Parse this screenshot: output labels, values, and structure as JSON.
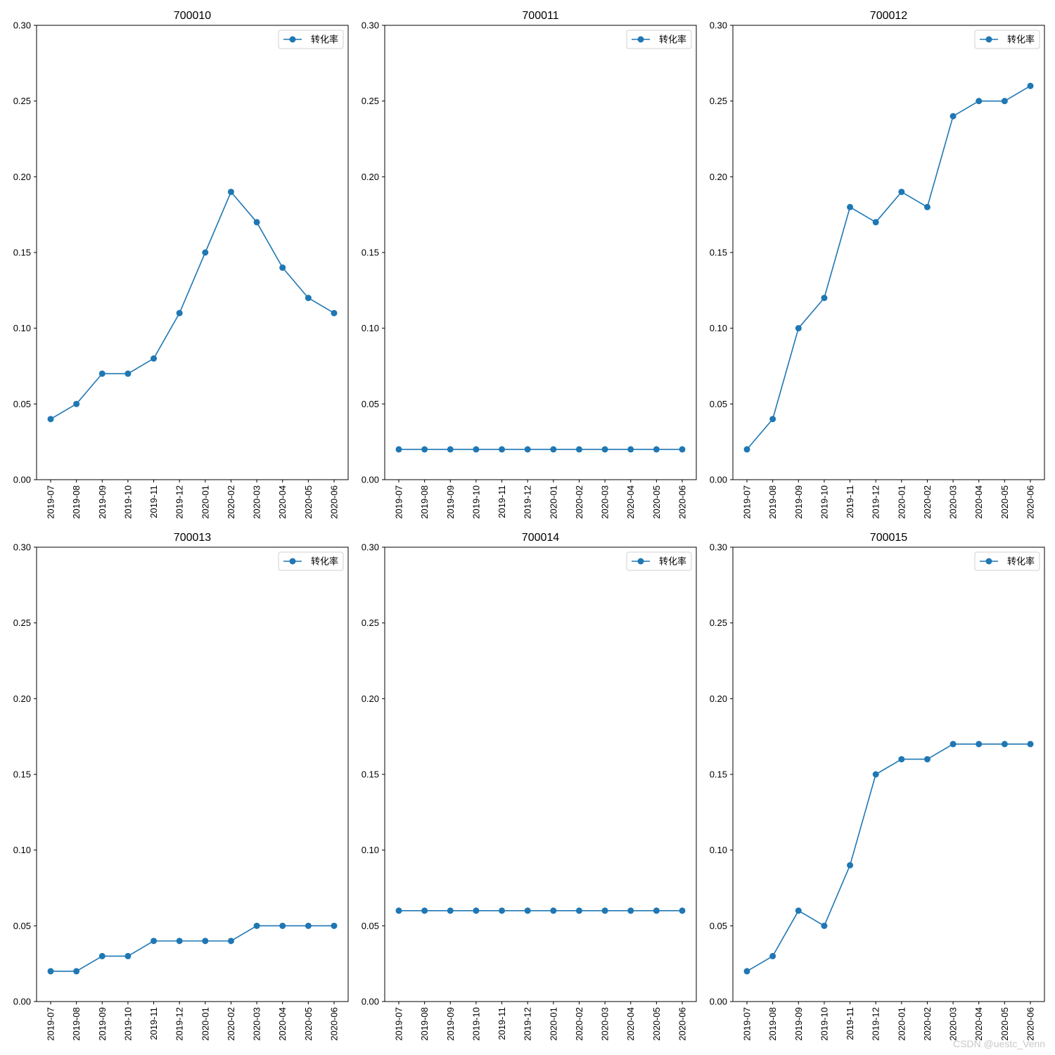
{
  "watermark": "CSDN @uestc_Venn",
  "chart_data": [
    {
      "type": "line",
      "title": "700010",
      "x": [
        "2019-07",
        "2019-08",
        "2019-09",
        "2019-10",
        "2019-11",
        "2019-12",
        "2020-01",
        "2020-02",
        "2020-03",
        "2020-04",
        "2020-05",
        "2020-06"
      ],
      "series": [
        {
          "name": "转化率",
          "values": [
            0.04,
            0.05,
            0.07,
            0.07,
            0.08,
            0.11,
            0.15,
            0.19,
            0.17,
            0.14,
            0.12,
            0.11
          ]
        }
      ],
      "ylim": [
        0,
        0.3
      ],
      "yticks": [
        "0.00",
        "0.05",
        "0.10",
        "0.15",
        "0.20",
        "0.25",
        "0.30"
      ],
      "legend_position": "upper right",
      "grid": false,
      "color": "#1f77b4"
    },
    {
      "type": "line",
      "title": "700011",
      "x": [
        "2019-07",
        "2019-08",
        "2019-09",
        "2019-10",
        "2019-11",
        "2019-12",
        "2020-01",
        "2020-02",
        "2020-03",
        "2020-04",
        "2020-05",
        "2020-06"
      ],
      "series": [
        {
          "name": "转化率",
          "values": [
            0.02,
            0.02,
            0.02,
            0.02,
            0.02,
            0.02,
            0.02,
            0.02,
            0.02,
            0.02,
            0.02,
            0.02
          ]
        }
      ],
      "ylim": [
        0,
        0.3
      ],
      "yticks": [
        "0.00",
        "0.05",
        "0.10",
        "0.15",
        "0.20",
        "0.25",
        "0.30"
      ],
      "legend_position": "upper right",
      "grid": false,
      "color": "#1f77b4"
    },
    {
      "type": "line",
      "title": "700012",
      "x": [
        "2019-07",
        "2019-08",
        "2019-09",
        "2019-10",
        "2019-11",
        "2019-12",
        "2020-01",
        "2020-02",
        "2020-03",
        "2020-04",
        "2020-05",
        "2020-06"
      ],
      "series": [
        {
          "name": "转化率",
          "values": [
            0.02,
            0.04,
            0.1,
            0.12,
            0.18,
            0.17,
            0.19,
            0.18,
            0.24,
            0.25,
            0.25,
            0.26
          ]
        }
      ],
      "ylim": [
        0,
        0.3
      ],
      "yticks": [
        "0.00",
        "0.05",
        "0.10",
        "0.15",
        "0.20",
        "0.25",
        "0.30"
      ],
      "legend_position": "upper right",
      "grid": false,
      "color": "#1f77b4"
    },
    {
      "type": "line",
      "title": "700013",
      "x": [
        "2019-07",
        "2019-08",
        "2019-09",
        "2019-10",
        "2019-11",
        "2019-12",
        "2020-01",
        "2020-02",
        "2020-03",
        "2020-04",
        "2020-05",
        "2020-06"
      ],
      "series": [
        {
          "name": "转化率",
          "values": [
            0.02,
            0.02,
            0.03,
            0.03,
            0.04,
            0.04,
            0.04,
            0.04,
            0.05,
            0.05,
            0.05,
            0.05
          ]
        }
      ],
      "ylim": [
        0,
        0.3
      ],
      "yticks": [
        "0.00",
        "0.05",
        "0.10",
        "0.15",
        "0.20",
        "0.25",
        "0.30"
      ],
      "legend_position": "upper right",
      "grid": false,
      "color": "#1f77b4"
    },
    {
      "type": "line",
      "title": "700014",
      "x": [
        "2019-07",
        "2019-08",
        "2019-09",
        "2019-10",
        "2019-11",
        "2019-12",
        "2020-01",
        "2020-02",
        "2020-03",
        "2020-04",
        "2020-05",
        "2020-06"
      ],
      "series": [
        {
          "name": "转化率",
          "values": [
            0.06,
            0.06,
            0.06,
            0.06,
            0.06,
            0.06,
            0.06,
            0.06,
            0.06,
            0.06,
            0.06,
            0.06
          ]
        }
      ],
      "ylim": [
        0,
        0.3
      ],
      "yticks": [
        "0.00",
        "0.05",
        "0.10",
        "0.15",
        "0.20",
        "0.25",
        "0.30"
      ],
      "legend_position": "upper right",
      "grid": false,
      "color": "#1f77b4"
    },
    {
      "type": "line",
      "title": "700015",
      "x": [
        "2019-07",
        "2019-08",
        "2019-09",
        "2019-10",
        "2019-11",
        "2019-12",
        "2020-01",
        "2020-02",
        "2020-03",
        "2020-04",
        "2020-05",
        "2020-06"
      ],
      "series": [
        {
          "name": "转化率",
          "values": [
            0.02,
            0.03,
            0.06,
            0.05,
            0.09,
            0.15,
            0.16,
            0.16,
            0.17,
            0.17,
            0.17,
            0.17
          ]
        }
      ],
      "ylim": [
        0,
        0.3
      ],
      "yticks": [
        "0.00",
        "0.05",
        "0.10",
        "0.15",
        "0.20",
        "0.25",
        "0.30"
      ],
      "legend_position": "upper right",
      "grid": false,
      "color": "#1f77b4"
    }
  ]
}
